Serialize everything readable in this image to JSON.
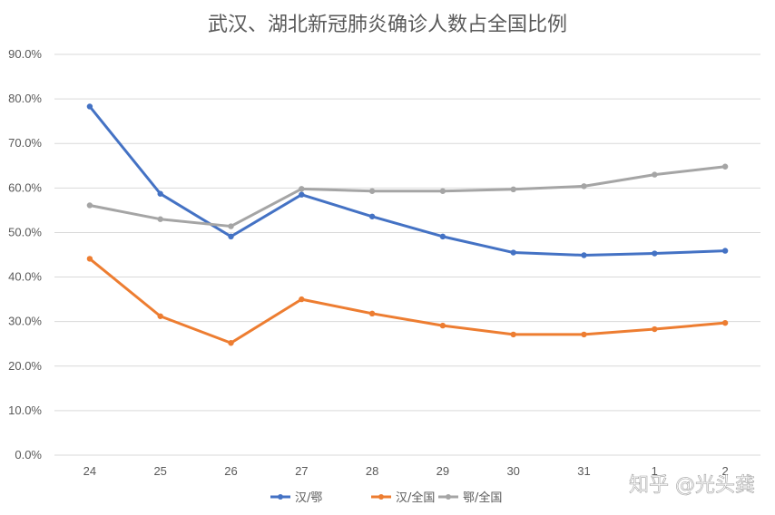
{
  "chart_data": {
    "type": "line",
    "title": "武汉、湖北新冠肺炎确诊人数占全国比例",
    "categories": [
      "24",
      "25",
      "26",
      "27",
      "28",
      "29",
      "30",
      "31",
      "1",
      "2"
    ],
    "ylim": [
      0,
      90
    ],
    "yticks": [
      "0.0%",
      "10.0%",
      "20.0%",
      "30.0%",
      "40.0%",
      "50.0%",
      "60.0%",
      "70.0%",
      "80.0%",
      "90.0%"
    ],
    "grid": true,
    "legend_position": "bottom",
    "series": [
      {
        "name": "汉/鄂",
        "color": "#4472c4",
        "values": [
          78.3,
          58.7,
          49.1,
          58.5,
          53.6,
          49.1,
          45.5,
          44.9,
          45.3,
          45.9
        ]
      },
      {
        "name": "汉/全国",
        "color": "#ed7d31",
        "values": [
          44.1,
          31.2,
          25.2,
          35.0,
          31.8,
          29.1,
          27.1,
          27.1,
          28.3,
          29.7
        ]
      },
      {
        "name": "鄂/全国",
        "color": "#a5a5a5",
        "values": [
          56.1,
          53.0,
          51.4,
          59.8,
          59.3,
          59.3,
          59.7,
          60.4,
          63.0,
          64.8
        ]
      }
    ]
  },
  "watermark": "知乎 @光头龚"
}
